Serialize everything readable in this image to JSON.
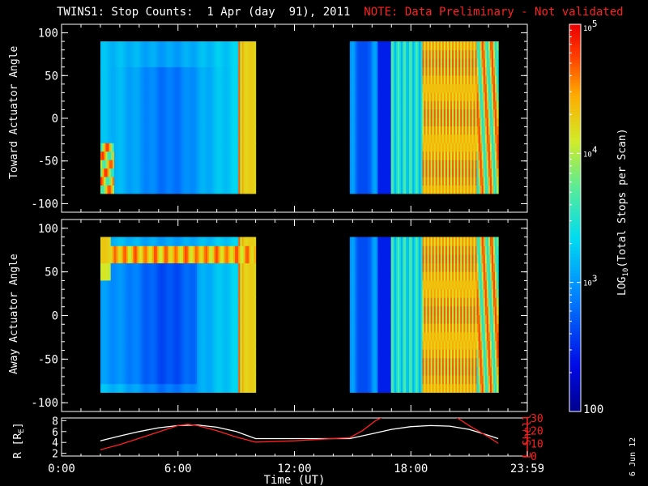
{
  "title": {
    "main": "TWINS1: Stop Counts:  1 Apr (day  91), 2011",
    "note": "NOTE: Data Preliminary - Not validated"
  },
  "footer_date": "6 Jun 12",
  "colors": {
    "note": "#ff2020",
    "orbit_r": "#ffffff",
    "orbit_lshell": "#ff2020"
  },
  "chart_data": [
    {
      "type": "heatmap",
      "name": "toward",
      "ylabel": "Toward Actuator Angle",
      "xlim": [
        0,
        24
      ],
      "ylim": [
        -110,
        110
      ],
      "yticks": [
        -100,
        -50,
        0,
        50,
        100
      ],
      "data_ranges": [
        [
          2.0,
          10.0
        ],
        [
          14.85,
          22.5
        ]
      ],
      "angle_range": [
        -88,
        90
      ]
    },
    {
      "type": "heatmap",
      "name": "away",
      "ylabel": "Away Actuator Angle",
      "xlim": [
        0,
        24
      ],
      "ylim": [
        -110,
        110
      ],
      "yticks": [
        -100,
        -50,
        0,
        50,
        100
      ],
      "data_ranges": [
        [
          2.0,
          10.0
        ],
        [
          14.85,
          22.5
        ]
      ],
      "angle_range": [
        -88,
        90
      ]
    },
    {
      "type": "line",
      "name": "orbit",
      "xlabel": "Time (UT)",
      "xlim": [
        0,
        24
      ],
      "xticks": [
        0,
        6,
        12,
        18,
        24
      ],
      "xticklabels": [
        "0:00",
        "6:00",
        "12:00",
        "18:00",
        "23:59"
      ],
      "ylabel_left": "R [R",
      "ylabel_left_sub": "E",
      "ylabel_left_end": "]",
      "ylim_left": [
        1.5,
        8.5
      ],
      "yticks_left": [
        2,
        4,
        6,
        8
      ],
      "ylabel_right": "L Shell",
      "ylim_right": [
        0,
        30
      ],
      "yticks_right": [
        0,
        10,
        20,
        30
      ],
      "series": [
        {
          "axis": "left",
          "x": [
            2.0,
            3.0,
            4.0,
            5.0,
            6.0,
            7.0,
            8.0,
            9.0,
            10.0,
            12.0,
            14.85,
            16.0,
            17.0,
            18.0,
            19.0,
            20.0,
            21.0,
            22.0,
            22.5
          ],
          "y": [
            4.3,
            5.2,
            6.0,
            6.7,
            7.1,
            7.2,
            6.8,
            6.0,
            4.7,
            4.7,
            4.7,
            5.6,
            6.4,
            6.9,
            7.1,
            7.0,
            6.4,
            5.3,
            4.7
          ]
        },
        {
          "axis": "right",
          "x": [
            2.0,
            3.0,
            4.0,
            5.0,
            6.0,
            6.5,
            7.0,
            8.0,
            9.0,
            10.0,
            12.0,
            14.85,
            15.5,
            16.2,
            16.6,
            20.3,
            21.0,
            22.0,
            22.5
          ],
          "y": [
            5,
            9,
            14,
            19,
            24,
            25,
            24,
            20,
            15,
            11,
            12,
            14.5,
            20,
            28,
            31,
            31,
            24,
            15,
            10
          ]
        }
      ]
    },
    {
      "type": "colorbar",
      "label": "LOG",
      "label_sub": "10",
      "label_end": "(Total Stops per Scan)",
      "scale": "log",
      "range": [
        100,
        100000
      ],
      "ticks": [
        {
          "value": 100,
          "base": "100",
          "exp": ""
        },
        {
          "value": 1000,
          "base": "10",
          "exp": "3"
        },
        {
          "value": 10000,
          "base": "10",
          "exp": "4"
        },
        {
          "value": 100000,
          "base": "10",
          "exp": "5"
        }
      ]
    }
  ]
}
